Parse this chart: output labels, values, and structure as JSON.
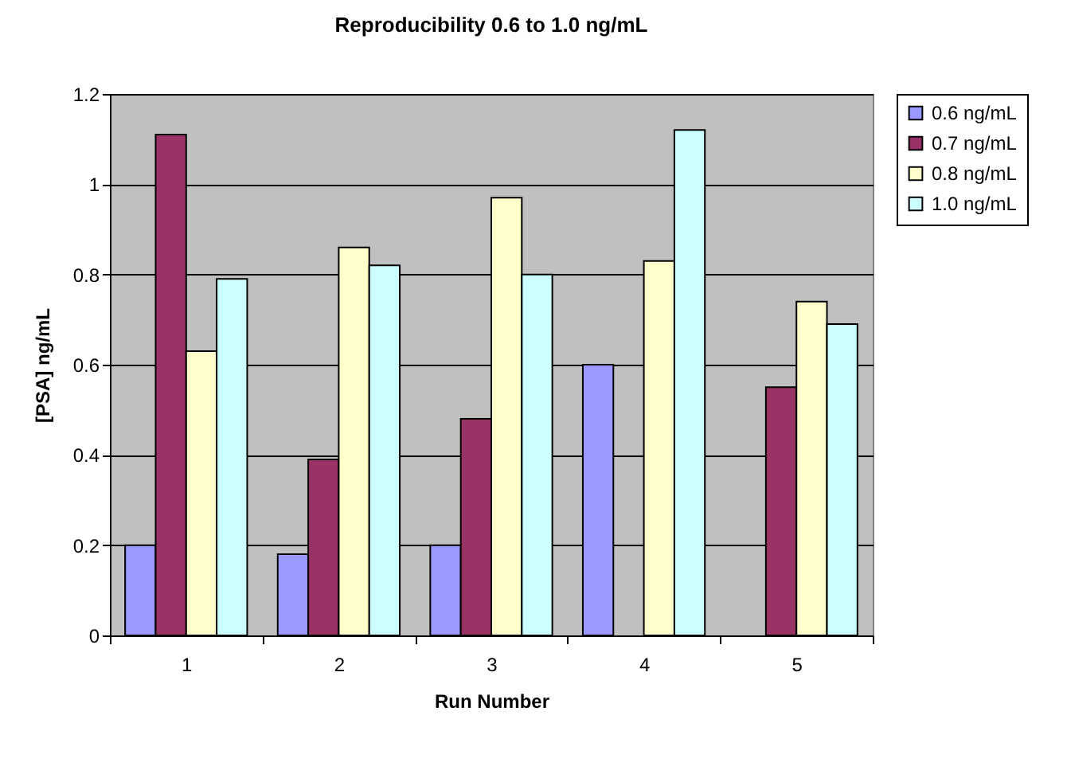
{
  "chart_data": {
    "type": "bar",
    "title": "Reproducibility 0.6 to 1.0 ng/mL",
    "xlabel": "Run Number",
    "ylabel": "[PSA] ng/mL",
    "categories": [
      "1",
      "2",
      "3",
      "4",
      "5"
    ],
    "series": [
      {
        "name": "0.6 ng/mL",
        "color": "#9999ff",
        "values": [
          0.2,
          0.18,
          0.2,
          0.6,
          null
        ]
      },
      {
        "name": "0.7 ng/mL",
        "color": "#993366",
        "values": [
          1.11,
          0.39,
          0.48,
          null,
          0.55
        ]
      },
      {
        "name": "0.8 ng/mL",
        "color": "#ffffcc",
        "values": [
          0.63,
          0.86,
          0.97,
          0.83,
          0.74
        ]
      },
      {
        "name": "1.0 ng/mL",
        "color": "#ccffff",
        "values": [
          0.79,
          0.82,
          0.8,
          1.12,
          0.69
        ]
      }
    ],
    "ylim": [
      0,
      1.2
    ],
    "yticks": [
      0,
      0.2,
      0.4,
      0.6,
      0.8,
      1,
      1.2
    ],
    "grid": "y",
    "legend": "right"
  }
}
